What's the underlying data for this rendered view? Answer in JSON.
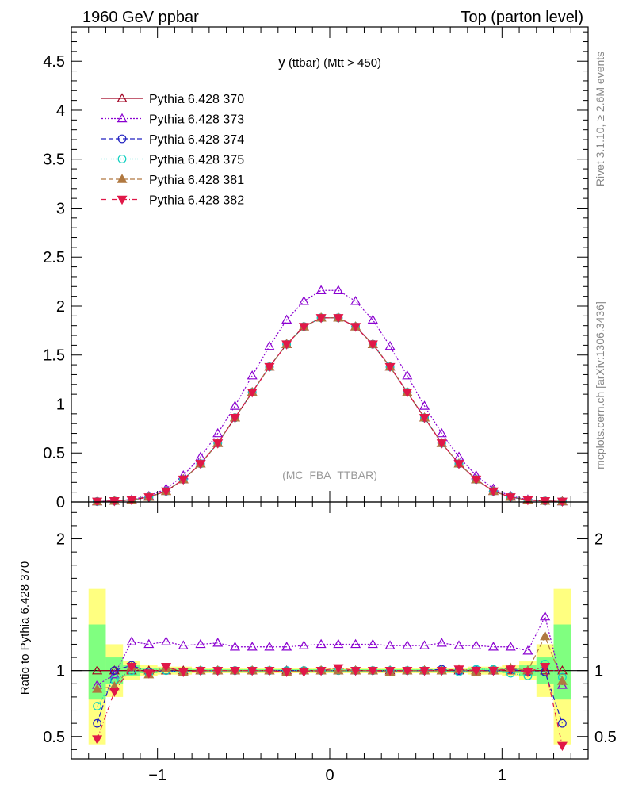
{
  "header": {
    "left": "1960 GeV ppbar",
    "right": "Top (parton level)"
  },
  "side_labels": {
    "rivet": "Rivet 3.1.10, ≥ 2.6M events",
    "mcplots": "mcplots.cern.ch [arXiv:1306.3436]"
  },
  "chart_data": {
    "type": "line",
    "title_main": "y",
    "title_sub": "(ttbar) (Mtt > 450)",
    "analysis_label": "(MC_FBA_TTBAR)",
    "xlim": [
      -1.5,
      1.5
    ],
    "ylim": [
      0,
      4.85
    ],
    "x_ticks": [
      "−1",
      "0",
      "1"
    ],
    "x_tick_values": [
      -1,
      0,
      1
    ],
    "y_ticks": [
      "0",
      "0.5",
      "1",
      "1.5",
      "2",
      "2.5",
      "3",
      "3.5",
      "4",
      "4.5"
    ],
    "y_tick_values": [
      0,
      0.5,
      1,
      1.5,
      2,
      2.5,
      3,
      3.5,
      4,
      4.5
    ],
    "x": [
      -1.35,
      -1.25,
      -1.15,
      -1.05,
      -0.95,
      -0.85,
      -0.75,
      -0.65,
      -0.55,
      -0.45,
      -0.35,
      -0.25,
      -0.15,
      -0.05,
      0.05,
      0.15,
      0.25,
      0.35,
      0.45,
      0.55,
      0.65,
      0.75,
      0.85,
      0.95,
      1.05,
      1.15,
      1.25,
      1.35
    ],
    "series": [
      {
        "name": "Pythia 6.428 370",
        "color": "#a00020",
        "dash": "",
        "marker": "triangle-open",
        "values": [
          0.005,
          0.01,
          0.02,
          0.05,
          0.11,
          0.23,
          0.39,
          0.6,
          0.86,
          1.12,
          1.38,
          1.61,
          1.79,
          1.88,
          1.88,
          1.79,
          1.61,
          1.38,
          1.12,
          0.86,
          0.6,
          0.39,
          0.23,
          0.11,
          0.05,
          0.02,
          0.01,
          0.005
        ]
      },
      {
        "name": "Pythia 6.428 373",
        "color": "#8a00d0",
        "dash": "2,2",
        "marker": "triangle-open",
        "values": [
          0.005,
          0.012,
          0.025,
          0.06,
          0.135,
          0.27,
          0.46,
          0.7,
          0.98,
          1.29,
          1.59,
          1.86,
          2.05,
          2.16,
          2.16,
          2.05,
          1.86,
          1.59,
          1.29,
          0.98,
          0.7,
          0.46,
          0.27,
          0.135,
          0.06,
          0.025,
          0.012,
          0.005
        ]
      },
      {
        "name": "Pythia 6.428 374",
        "color": "#2020c0",
        "dash": "6,3",
        "marker": "circle-open",
        "values": [
          0.005,
          0.01,
          0.02,
          0.05,
          0.11,
          0.23,
          0.39,
          0.6,
          0.86,
          1.12,
          1.38,
          1.61,
          1.79,
          1.88,
          1.88,
          1.79,
          1.61,
          1.38,
          1.12,
          0.86,
          0.6,
          0.39,
          0.23,
          0.11,
          0.05,
          0.02,
          0.01,
          0.005
        ]
      },
      {
        "name": "Pythia 6.428 375",
        "color": "#10d0c0",
        "dash": "1,2",
        "marker": "circle-open",
        "values": [
          0.005,
          0.01,
          0.02,
          0.05,
          0.11,
          0.23,
          0.39,
          0.6,
          0.86,
          1.12,
          1.38,
          1.61,
          1.79,
          1.88,
          1.88,
          1.79,
          1.61,
          1.38,
          1.12,
          0.86,
          0.6,
          0.39,
          0.23,
          0.11,
          0.05,
          0.02,
          0.01,
          0.005
        ]
      },
      {
        "name": "Pythia 6.428 381",
        "color": "#b07840",
        "dash": "6,3",
        "marker": "triangle-filled",
        "values": [
          0.005,
          0.01,
          0.02,
          0.05,
          0.11,
          0.23,
          0.39,
          0.6,
          0.86,
          1.12,
          1.38,
          1.61,
          1.79,
          1.88,
          1.88,
          1.79,
          1.61,
          1.38,
          1.12,
          0.86,
          0.6,
          0.39,
          0.23,
          0.11,
          0.05,
          0.02,
          0.01,
          0.005
        ]
      },
      {
        "name": "Pythia 6.428 382",
        "color": "#e01848",
        "dash": "6,3,1,3",
        "marker": "triangle-down-filled",
        "values": [
          0.005,
          0.01,
          0.02,
          0.05,
          0.11,
          0.23,
          0.39,
          0.6,
          0.86,
          1.12,
          1.38,
          1.61,
          1.79,
          1.88,
          1.88,
          1.79,
          1.61,
          1.38,
          1.12,
          0.86,
          0.6,
          0.39,
          0.23,
          0.11,
          0.05,
          0.02,
          0.01,
          0.005
        ]
      }
    ],
    "ratio": {
      "ylabel": "Ratio to Pythia 6.428 370",
      "ylim": [
        0.33,
        2.28
      ],
      "y_ticks": [
        "0.5",
        "1",
        "2"
      ],
      "y_tick_values": [
        0.5,
        1,
        2
      ],
      "band_yellow": [
        [
          0.44,
          1.62
        ],
        [
          0.8,
          1.2
        ],
        [
          0.93,
          1.07
        ],
        [
          0.96,
          1.04
        ],
        [
          0.97,
          1.03
        ],
        [
          0.97,
          1.03
        ],
        [
          0.98,
          1.02
        ],
        [
          0.98,
          1.02
        ],
        [
          0.98,
          1.02
        ],
        [
          0.98,
          1.02
        ],
        [
          0.98,
          1.02
        ],
        [
          0.98,
          1.02
        ],
        [
          0.98,
          1.02
        ],
        [
          0.98,
          1.02
        ],
        [
          0.98,
          1.02
        ],
        [
          0.98,
          1.02
        ],
        [
          0.98,
          1.02
        ],
        [
          0.98,
          1.02
        ],
        [
          0.98,
          1.02
        ],
        [
          0.98,
          1.02
        ],
        [
          0.98,
          1.02
        ],
        [
          0.98,
          1.02
        ],
        [
          0.97,
          1.03
        ],
        [
          0.97,
          1.03
        ],
        [
          0.96,
          1.04
        ],
        [
          0.93,
          1.07
        ],
        [
          0.8,
          1.2
        ],
        [
          0.44,
          1.62
        ]
      ],
      "band_green": [
        [
          0.78,
          1.35
        ],
        [
          0.9,
          1.1
        ],
        [
          0.96,
          1.04
        ],
        [
          0.98,
          1.02
        ],
        [
          0.985,
          1.015
        ],
        [
          0.985,
          1.015
        ],
        [
          0.99,
          1.01
        ],
        [
          0.99,
          1.01
        ],
        [
          0.99,
          1.01
        ],
        [
          0.99,
          1.01
        ],
        [
          0.99,
          1.01
        ],
        [
          0.99,
          1.01
        ],
        [
          0.99,
          1.01
        ],
        [
          0.99,
          1.01
        ],
        [
          0.99,
          1.01
        ],
        [
          0.99,
          1.01
        ],
        [
          0.99,
          1.01
        ],
        [
          0.99,
          1.01
        ],
        [
          0.99,
          1.01
        ],
        [
          0.99,
          1.01
        ],
        [
          0.99,
          1.01
        ],
        [
          0.99,
          1.01
        ],
        [
          0.985,
          1.015
        ],
        [
          0.985,
          1.015
        ],
        [
          0.98,
          1.02
        ],
        [
          0.96,
          1.04
        ],
        [
          0.9,
          1.1
        ],
        [
          0.78,
          1.35
        ]
      ],
      "series": [
        {
          "name": "Pythia 6.428 370",
          "values": [
            1,
            1,
            1,
            1,
            1,
            1,
            1,
            1,
            1,
            1,
            1,
            1,
            1,
            1,
            1,
            1,
            1,
            1,
            1,
            1,
            1,
            1,
            1,
            1,
            1,
            1,
            1,
            1
          ]
        },
        {
          "name": "Pythia 6.428 373",
          "values": [
            0.89,
            0.97,
            1.22,
            1.2,
            1.22,
            1.19,
            1.2,
            1.21,
            1.18,
            1.18,
            1.18,
            1.18,
            1.19,
            1.2,
            1.2,
            1.2,
            1.2,
            1.19,
            1.19,
            1.19,
            1.21,
            1.19,
            1.19,
            1.18,
            1.18,
            1.15,
            1.41,
            0.89
          ]
        },
        {
          "name": "Pythia 6.428 374",
          "values": [
            0.6,
            1.0,
            1.04,
            0.99,
            1.0,
            0.99,
            1.0,
            1.0,
            1.0,
            1.0,
            1.0,
            1.0,
            1.0,
            1.0,
            1.0,
            1.0,
            1.0,
            0.99,
            1.0,
            1.0,
            1.01,
            1.0,
            1.0,
            1.0,
            1.01,
            0.99,
            0.99,
            0.6
          ]
        },
        {
          "name": "Pythia 6.428 375",
          "values": [
            0.73,
            0.93,
            1.0,
            0.98,
            1.0,
            0.99,
            1.0,
            1.0,
            1.0,
            1.0,
            1.0,
            1.0,
            1.0,
            1.0,
            1.0,
            1.0,
            1.0,
            1.0,
            1.0,
            1.0,
            1.0,
            0.99,
            1.01,
            1.01,
            0.98,
            0.96,
            1.05,
            0.95
          ]
        },
        {
          "name": "Pythia 6.428 381",
          "values": [
            0.86,
            0.88,
            1.03,
            0.97,
            1.02,
            0.99,
            1.0,
            1.0,
            1.0,
            1.0,
            1.0,
            0.99,
            1.0,
            1.0,
            1.0,
            1.0,
            1.0,
            0.99,
            1.0,
            1.0,
            1.0,
            1.01,
            0.99,
            1.0,
            1.02,
            1.0,
            1.26,
            0.92
          ]
        },
        {
          "name": "Pythia 6.428 382",
          "values": [
            0.48,
            0.84,
            1.03,
            0.98,
            1.03,
            0.99,
            1.0,
            1.0,
            1.0,
            1.0,
            1.0,
            0.99,
            0.99,
            1.0,
            1.02,
            1.0,
            1.0,
            1.0,
            1.0,
            1.0,
            1.0,
            1.01,
            1.0,
            1.0,
            1.01,
            0.99,
            1.03,
            0.43
          ]
        }
      ]
    }
  }
}
